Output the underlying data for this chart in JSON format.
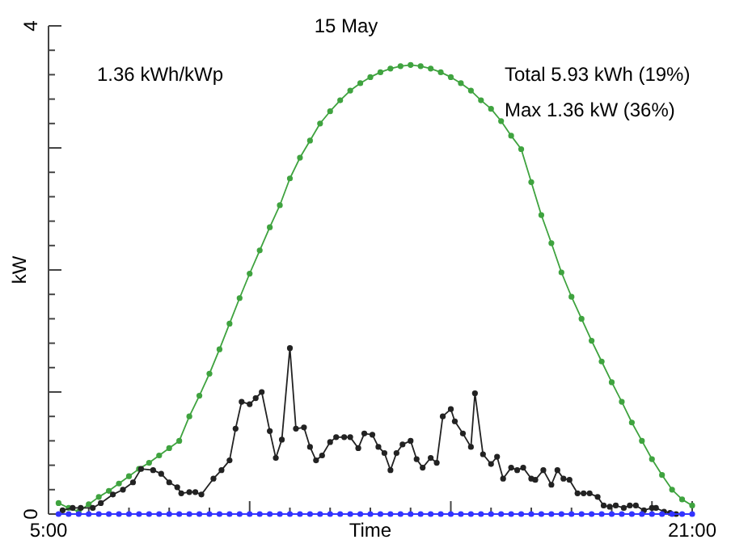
{
  "chart_data": {
    "type": "line",
    "title": "15 May",
    "xlabel": "Time",
    "ylabel": "kW",
    "marker": "circle",
    "line_style": "solid",
    "grid": false,
    "annotations": [
      "1.36 kWh/kWp",
      "Total 5.93 kWh (19%)",
      "Max 1.36 kW (36%)"
    ],
    "xlim": [
      5,
      21
    ],
    "ylim": [
      0,
      4
    ],
    "xticks": [
      {
        "value": 5,
        "label": "5:00"
      },
      {
        "value": 6,
        "label": null
      },
      {
        "value": 7,
        "label": null
      },
      {
        "value": 8,
        "label": null
      },
      {
        "value": 9,
        "label": null
      },
      {
        "value": 10,
        "label": null
      },
      {
        "value": 11,
        "label": null
      },
      {
        "value": 12,
        "label": null
      },
      {
        "value": 13,
        "label": null
      },
      {
        "value": 14,
        "label": null
      },
      {
        "value": 15,
        "label": null
      },
      {
        "value": 16,
        "label": null
      },
      {
        "value": 17,
        "label": null
      },
      {
        "value": 18,
        "label": null
      },
      {
        "value": 19,
        "label": null
      },
      {
        "value": 20,
        "label": null
      },
      {
        "value": 21,
        "label": "21:00"
      }
    ],
    "yticks": [
      0,
      {
        "value": 0.2,
        "label": null
      },
      {
        "value": 0.4,
        "label": null
      },
      {
        "value": 0.6,
        "label": null
      },
      {
        "value": 0.8,
        "label": null
      },
      {
        "value": 1,
        "label": null
      },
      {
        "value": 1.2,
        "label": null
      },
      {
        "value": 1.4,
        "label": null
      },
      {
        "value": 1.6,
        "label": null
      },
      {
        "value": 1.8,
        "label": null
      },
      {
        "value": 2,
        "label": null
      },
      {
        "value": 2.2,
        "label": null
      },
      {
        "value": 2.4,
        "label": null
      },
      {
        "value": 2.6,
        "label": null
      },
      {
        "value": 2.8,
        "label": null
      },
      {
        "value": 3,
        "label": null
      },
      {
        "value": 3.2,
        "label": null
      },
      {
        "value": 3.4,
        "label": null
      },
      {
        "value": 3.6,
        "label": null
      },
      {
        "value": 3.8,
        "label": null
      },
      4
    ],
    "series": [
      {
        "color": "#3fa33f",
        "x": [
          5.25,
          5.5,
          5.75,
          6,
          6.25,
          6.5,
          6.75,
          7,
          7.25,
          7.5,
          7.75,
          8,
          8.25,
          8.5,
          8.75,
          9,
          9.25,
          9.5,
          9.75,
          10,
          10.25,
          10.5,
          10.75,
          11,
          11.25,
          11.5,
          11.75,
          12,
          12.25,
          12.5,
          12.75,
          13,
          13.25,
          13.5,
          13.75,
          14,
          14.25,
          14.5,
          14.75,
          15,
          15.25,
          15.5,
          15.75,
          16,
          16.25,
          16.5,
          16.75,
          17,
          17.25,
          17.5,
          17.75,
          18,
          18.25,
          18.5,
          18.75,
          19,
          19.25,
          19.5,
          19.75,
          20,
          20.25,
          20.5,
          20.75,
          21
        ],
        "values": [
          0.09,
          0.05,
          0.02,
          0.08,
          0.14,
          0.19,
          0.25,
          0.31,
          0.37,
          0.42,
          0.48,
          0.54,
          0.6,
          0.8,
          0.97,
          1.15,
          1.35,
          1.56,
          1.77,
          1.97,
          2.16,
          2.35,
          2.53,
          2.75,
          2.92,
          3.06,
          3.2,
          3.3,
          3.39,
          3.47,
          3.53,
          3.58,
          3.62,
          3.65,
          3.67,
          3.68,
          3.67,
          3.65,
          3.62,
          3.58,
          3.53,
          3.47,
          3.39,
          3.32,
          3.22,
          3.1,
          2.99,
          2.72,
          2.45,
          2.22,
          1.98,
          1.78,
          1.6,
          1.42,
          1.25,
          1.08,
          0.92,
          0.75,
          0.6,
          0.45,
          0.32,
          0.2,
          0.12,
          0.07
        ]
      },
      {
        "color": "#222222",
        "x": [
          5.35,
          5.6,
          5.8,
          6.1,
          6.3,
          6.6,
          6.85,
          7.1,
          7.3,
          7.6,
          7.8,
          8,
          8.2,
          8.3,
          8.5,
          8.65,
          8.8,
          9.1,
          9.3,
          9.5,
          9.65,
          9.8,
          10,
          10.15,
          10.3,
          10.5,
          10.65,
          10.8,
          11,
          11.15,
          11.35,
          11.5,
          11.65,
          11.8,
          12,
          12.15,
          12.35,
          12.5,
          12.7,
          12.85,
          13.05,
          13.2,
          13.35,
          13.5,
          13.65,
          13.8,
          14,
          14.15,
          14.3,
          14.5,
          14.65,
          14.8,
          15,
          15.1,
          15.3,
          15.5,
          15.6,
          15.8,
          16,
          16.15,
          16.3,
          16.5,
          16.65,
          16.8,
          17,
          17.1,
          17.3,
          17.5,
          17.65,
          17.8,
          17.95,
          18.15,
          18.3,
          18.45,
          18.65,
          18.8,
          18.95,
          19.1,
          19.3,
          19.45,
          19.6,
          19.8,
          20,
          20.1,
          20.3,
          20.45,
          20.6
        ],
        "values": [
          0.03,
          0.05,
          0.05,
          0.05,
          0.09,
          0.16,
          0.2,
          0.26,
          0.37,
          0.36,
          0.33,
          0.26,
          0.22,
          0.17,
          0.18,
          0.18,
          0.16,
          0.29,
          0.36,
          0.44,
          0.7,
          0.92,
          0.9,
          0.95,
          1,
          0.68,
          0.46,
          0.61,
          1.36,
          0.7,
          0.71,
          0.55,
          0.44,
          0.48,
          0.59,
          0.63,
          0.63,
          0.63,
          0.54,
          0.66,
          0.65,
          0.55,
          0.5,
          0.36,
          0.5,
          0.57,
          0.6,
          0.45,
          0.38,
          0.46,
          0.42,
          0.8,
          0.86,
          0.76,
          0.66,
          0.55,
          0.99,
          0.49,
          0.41,
          0.47,
          0.29,
          0.38,
          0.36,
          0.38,
          0.29,
          0.28,
          0.36,
          0.24,
          0.36,
          0.29,
          0.28,
          0.17,
          0.17,
          0.17,
          0.14,
          0.07,
          0.06,
          0.07,
          0.05,
          0.07,
          0.07,
          0.03,
          0.05,
          0.05,
          0.02,
          0.01,
          0
        ]
      },
      {
        "color": "#3333ff",
        "x": [
          5.25,
          5.5,
          5.75,
          6,
          6.25,
          6.5,
          6.75,
          7,
          7.25,
          7.5,
          7.75,
          8,
          8.25,
          8.5,
          8.75,
          9,
          9.25,
          9.5,
          9.75,
          10,
          10.25,
          10.5,
          10.75,
          11,
          11.25,
          11.5,
          11.75,
          12,
          12.25,
          12.5,
          12.75,
          13,
          13.25,
          13.5,
          13.75,
          14,
          14.25,
          14.5,
          14.75,
          15,
          15.25,
          15.5,
          15.75,
          16,
          16.25,
          16.5,
          16.75,
          17,
          17.25,
          17.5,
          17.75,
          18,
          18.25,
          18.5,
          18.75,
          19,
          19.25,
          19.5,
          19.75,
          20,
          20.25,
          20.5,
          20.75,
          21
        ],
        "values": [
          0,
          0,
          0,
          0,
          0,
          0,
          0,
          0,
          0,
          0,
          0,
          0,
          0,
          0,
          0,
          0,
          0,
          0,
          0,
          0,
          0,
          0,
          0,
          0,
          0,
          0,
          0,
          0,
          0,
          0,
          0,
          0,
          0,
          0,
          0,
          0,
          0,
          0,
          0,
          0,
          0,
          0,
          0,
          0,
          0,
          0,
          0,
          0,
          0,
          0,
          0,
          0,
          0,
          0,
          0,
          0,
          0,
          0,
          0,
          0,
          0,
          0,
          0,
          0
        ]
      }
    ]
  }
}
